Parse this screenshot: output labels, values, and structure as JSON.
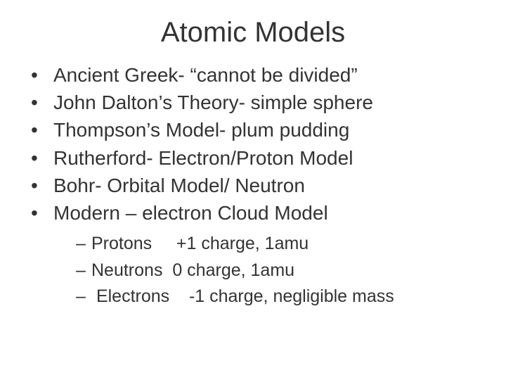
{
  "title": "Atomic Models",
  "items": [
    "Ancient Greek- “cannot be divided”",
    "John Dalton’s Theory- simple sphere",
    "Thompson’s Model- plum pudding",
    "Rutherford- Electron/Proton Model",
    "Bohr- Orbital Model/ Neutron",
    "Modern – electron Cloud Model"
  ],
  "subitems": [
    "Protons     +1 charge, 1amu",
    "Neutrons  0 charge, 1amu",
    " Electrons    -1 charge, negligible mass"
  ],
  "bullet_char": "•",
  "dash_char": "–",
  "colors": {
    "background": "#ffffff",
    "text": "#333333"
  },
  "fonts": {
    "title_size": 40,
    "item_size": 28,
    "subitem_size": 25
  }
}
